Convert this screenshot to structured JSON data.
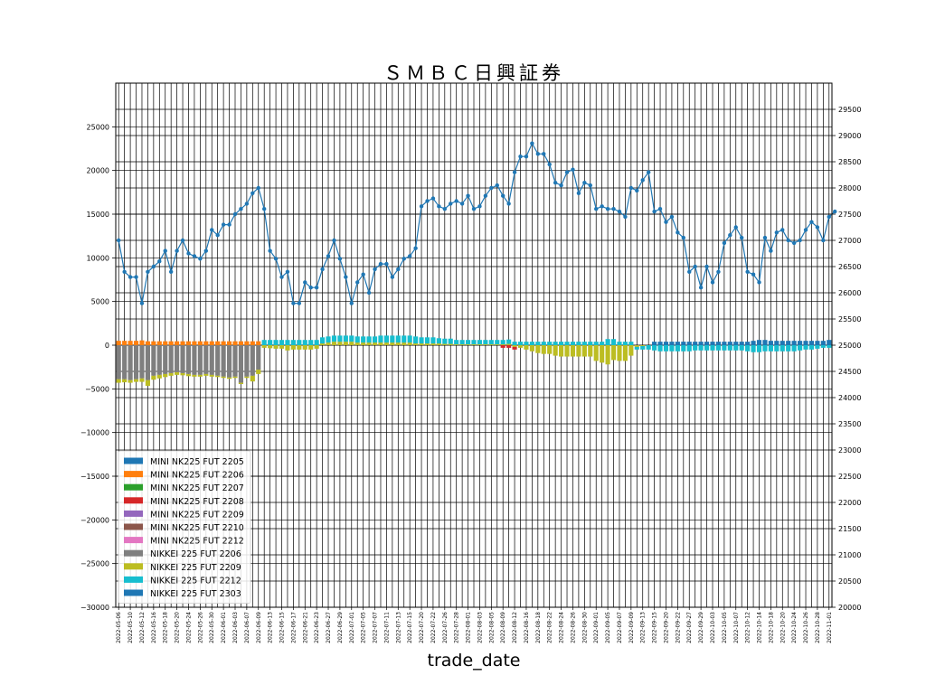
{
  "chart_data": {
    "type": "bar",
    "title": "ＳＭＢＣ日興証券",
    "xlabel": "trade_date",
    "ylabel": "",
    "ylim": [
      -30000,
      30000
    ],
    "y2lim": [
      20000,
      30000
    ],
    "left_ticks": [
      -30000,
      -25000,
      -20000,
      -15000,
      -10000,
      -5000,
      0,
      5000,
      10000,
      15000,
      20000,
      25000
    ],
    "right_ticks": [
      20000,
      20500,
      21000,
      21500,
      22000,
      22500,
      23000,
      23500,
      24000,
      24500,
      25000,
      25500,
      26000,
      26500,
      27000,
      27500,
      28000,
      28500,
      29000,
      29500
    ],
    "grid": true,
    "legend_position": "lower-left",
    "legend": [
      {
        "label": "MINI NK225 FUT 2205",
        "color": "#1f77b4"
      },
      {
        "label": "MINI NK225 FUT 2206",
        "color": "#ff7f0e"
      },
      {
        "label": "MINI NK225 FUT 2207",
        "color": "#2ca02c"
      },
      {
        "label": "MINI NK225 FUT 2208",
        "color": "#d62728"
      },
      {
        "label": "MINI NK225 FUT 2209",
        "color": "#9467bd"
      },
      {
        "label": "MINI NK225 FUT 2210",
        "color": "#8c564b"
      },
      {
        "label": "MINI NK225 FUT 2212",
        "color": "#e377c2"
      },
      {
        "label": "NIKKEI 225 FUT 2206",
        "color": "#7f7f7f"
      },
      {
        "label": "NIKKEI 225 FUT 2209",
        "color": "#bcbd22"
      },
      {
        "label": "NIKKEI 225 FUT 2212",
        "color": "#17becf"
      },
      {
        "label": "NIKKEI 225 FUT 2303",
        "color": "#1f77b4"
      }
    ],
    "dates": [
      "2022-05-06",
      "2022-05-09",
      "2022-05-10",
      "2022-05-11",
      "2022-05-12",
      "2022-05-13",
      "2022-05-16",
      "2022-05-17",
      "2022-05-18",
      "2022-05-19",
      "2022-05-20",
      "2022-05-23",
      "2022-05-24",
      "2022-05-25",
      "2022-05-26",
      "2022-05-27",
      "2022-05-30",
      "2022-05-31",
      "2022-06-01",
      "2022-06-02",
      "2022-06-03",
      "2022-06-06",
      "2022-06-07",
      "2022-06-08",
      "2022-06-09",
      "2022-06-10",
      "2022-06-13",
      "2022-06-14",
      "2022-06-15",
      "2022-06-16",
      "2022-06-17",
      "2022-06-20",
      "2022-06-21",
      "2022-06-22",
      "2022-06-23",
      "2022-06-24",
      "2022-06-27",
      "2022-06-28",
      "2022-06-29",
      "2022-06-30",
      "2022-07-01",
      "2022-07-04",
      "2022-07-05",
      "2022-07-06",
      "2022-07-07",
      "2022-07-08",
      "2022-07-11",
      "2022-07-12",
      "2022-07-13",
      "2022-07-14",
      "2022-07-15",
      "2022-07-19",
      "2022-07-20",
      "2022-07-21",
      "2022-07-22",
      "2022-07-25",
      "2022-07-26",
      "2022-07-27",
      "2022-07-28",
      "2022-07-29",
      "2022-08-01",
      "2022-08-02",
      "2022-08-03",
      "2022-08-04",
      "2022-08-05",
      "2022-08-08",
      "2022-08-09",
      "2022-08-10",
      "2022-08-12",
      "2022-08-15",
      "2022-08-16",
      "2022-08-17",
      "2022-08-18",
      "2022-08-19",
      "2022-08-22",
      "2022-08-23",
      "2022-08-24",
      "2022-08-25",
      "2022-08-26",
      "2022-08-29",
      "2022-08-30",
      "2022-08-31",
      "2022-09-01",
      "2022-09-02",
      "2022-09-05",
      "2022-09-06",
      "2022-09-07",
      "2022-09-08",
      "2022-09-09",
      "2022-09-12",
      "2022-09-13",
      "2022-09-14",
      "2022-09-15",
      "2022-09-16",
      "2022-09-20",
      "2022-09-21",
      "2022-09-22",
      "2022-09-26",
      "2022-09-27",
      "2022-09-28",
      "2022-09-29",
      "2022-09-30",
      "2022-10-03",
      "2022-10-04",
      "2022-10-05",
      "2022-10-06",
      "2022-10-07",
      "2022-10-11",
      "2022-10-12",
      "2022-10-13",
      "2022-10-14",
      "2022-10-17",
      "2022-10-18",
      "2022-10-19",
      "2022-10-20",
      "2022-10-21",
      "2022-10-24",
      "2022-10-25",
      "2022-10-26",
      "2022-10-27",
      "2022-10-28",
      "2022-10-31",
      "2022-11-01"
    ],
    "xtick_labels": [
      "2022-05-06",
      "2022-05-10",
      "2022-05-12",
      "2022-05-16",
      "2022-05-18",
      "2022-05-20",
      "2022-05-24",
      "2022-05-26",
      "2022-05-30",
      "2022-06-01",
      "2022-06-03",
      "2022-06-07",
      "2022-06-09",
      "2022-06-13",
      "2022-06-15",
      "2022-06-17",
      "2022-06-21",
      "2022-06-23",
      "2022-06-27",
      "2022-06-29",
      "2022-07-01",
      "2022-07-05",
      "2022-07-07",
      "2022-07-11",
      "2022-07-13",
      "2022-07-15",
      "2022-07-20",
      "2022-07-22",
      "2022-07-26",
      "2022-07-28",
      "2022-08-01",
      "2022-08-03",
      "2022-08-05",
      "2022-08-09",
      "2022-08-12",
      "2022-08-16",
      "2022-08-18",
      "2022-08-22",
      "2022-08-24",
      "2022-08-26",
      "2022-08-30",
      "2022-09-01",
      "2022-09-05",
      "2022-09-07",
      "2022-09-09",
      "2022-09-13",
      "2022-09-15",
      "2022-09-20",
      "2022-09-22",
      "2022-09-27",
      "2022-09-29",
      "2022-10-03",
      "2022-10-05",
      "2022-10-07",
      "2022-10-12",
      "2022-10-14",
      "2022-10-18",
      "2022-10-20",
      "2022-10-24",
      "2022-10-26",
      "2022-10-28",
      "2022-11-01"
    ],
    "line_series": {
      "name": "",
      "color": "#1f77b4",
      "values": [
        27000,
        26400,
        26300,
        26300,
        25800,
        26400,
        26500,
        26600,
        26800,
        26400,
        26800,
        27000,
        26750,
        26700,
        26650,
        26800,
        27200,
        27100,
        27300,
        27300,
        27500,
        27600,
        27700,
        27900,
        28000,
        27600,
        26800,
        26650,
        26300,
        26400,
        25800,
        25800,
        26200,
        26100,
        26100,
        26450,
        26700,
        27000,
        26650,
        26300,
        25800,
        26200,
        26350,
        26000,
        26450,
        26550,
        26550,
        26300,
        26450,
        26650,
        26700,
        26850,
        27650,
        27750,
        27800,
        27650,
        27600,
        27700,
        27750,
        27700,
        27850,
        27600,
        27650,
        27850,
        28000,
        28050,
        27850,
        27700,
        28300,
        28600,
        28600,
        28850,
        28650,
        28650,
        28450,
        28100,
        28050,
        28300,
        28350,
        27900,
        28100,
        28050,
        27600,
        27650,
        27600,
        27600,
        27550,
        27450,
        28000,
        27950,
        28150,
        28300,
        27550,
        27600,
        27350,
        27450,
        27150,
        27050,
        26400,
        26500,
        26100,
        26500,
        26200,
        26400,
        26950,
        27100,
        27250,
        27050,
        26400,
        26350,
        26200,
        27050,
        26800,
        27150,
        27200,
        27000,
        26950,
        27000,
        27200,
        27350,
        27250,
        27000,
        27450,
        27550
      ]
    },
    "bar_series": [
      {
        "name": "MINI NK225 FUT 2206",
        "color": "#ff7f0e",
        "values": [
          500,
          500,
          500,
          500,
          550,
          450,
          450,
          450,
          450,
          450,
          450,
          450,
          450,
          450,
          450,
          450,
          450,
          450,
          450,
          450,
          450,
          450,
          450,
          450,
          450,
          0,
          0,
          0,
          0,
          0,
          0,
          0,
          0,
          0,
          0,
          0,
          0,
          0,
          0,
          0,
          0,
          0,
          0,
          0,
          0,
          0,
          0,
          0,
          0,
          0,
          0,
          0,
          0,
          0,
          0,
          0,
          0,
          0,
          0,
          0,
          0,
          0,
          0,
          0,
          0,
          0,
          0,
          0,
          0,
          0,
          0,
          0,
          0,
          0,
          0,
          0,
          0,
          0,
          0,
          0,
          0,
          0,
          0,
          0,
          0,
          0,
          0,
          0,
          0,
          0,
          0,
          0,
          0,
          0,
          0,
          0,
          0,
          0,
          0,
          0,
          0,
          0,
          0,
          0,
          0,
          0,
          0,
          0,
          0,
          0,
          0,
          0,
          0,
          0,
          0,
          0,
          0,
          0,
          0,
          0,
          0,
          0,
          0
        ]
      },
      {
        "name": "NIKKEI 225 FUT 2206",
        "color": "#7f7f7f",
        "values": [
          -3900,
          -3900,
          -4000,
          -3900,
          -3800,
          -4000,
          -3500,
          -3400,
          -3300,
          -3200,
          -3100,
          -3200,
          -3300,
          -3400,
          -3400,
          -3300,
          -3400,
          -3500,
          -3600,
          -3700,
          -3600,
          -4300,
          -3600,
          -3500,
          -2800,
          0,
          0,
          0,
          0,
          0,
          0,
          0,
          0,
          0,
          0,
          0,
          0,
          0,
          0,
          0,
          0,
          0,
          0,
          0,
          0,
          0,
          0,
          0,
          0,
          0,
          0,
          0,
          0,
          0,
          0,
          0,
          0,
          0,
          0,
          0,
          0,
          0,
          0,
          0,
          0,
          0,
          0,
          0,
          0,
          0,
          0,
          0,
          0,
          0,
          0,
          0,
          0,
          0,
          0,
          0,
          0,
          0,
          0,
          0,
          0,
          0,
          0,
          0,
          0,
          0,
          0,
          0,
          0,
          0,
          0,
          0,
          0,
          0,
          0,
          0,
          0,
          0,
          0,
          0,
          0,
          0,
          0,
          0,
          0,
          0,
          0,
          0,
          0,
          0,
          0,
          0,
          0,
          0,
          0,
          0,
          0,
          0,
          0
        ]
      },
      {
        "name": "NIKKEI 225 FUT 2209",
        "color": "#bcbd22",
        "values": [
          -400,
          -350,
          -300,
          -300,
          -400,
          -650,
          -450,
          -400,
          -350,
          -300,
          -300,
          -250,
          -250,
          -200,
          -200,
          -200,
          -200,
          -150,
          -150,
          -150,
          -150,
          -150,
          -150,
          -650,
          -500,
          -300,
          -350,
          -400,
          -400,
          -600,
          -500,
          -500,
          -500,
          -500,
          -400,
          200,
          300,
          400,
          400,
          400,
          400,
          300,
          300,
          300,
          300,
          300,
          300,
          300,
          300,
          300,
          300,
          200,
          200,
          200,
          200,
          200,
          150,
          150,
          100,
          100,
          100,
          100,
          100,
          100,
          100,
          100,
          100,
          150,
          -200,
          -300,
          -500,
          -700,
          -900,
          -1000,
          -1000,
          -1200,
          -1300,
          -1300,
          -1300,
          -1300,
          -1300,
          -1300,
          -1800,
          -2000,
          -2200,
          -1700,
          -1800,
          -1800,
          -1200,
          -200,
          -100,
          0,
          0,
          0,
          0,
          0,
          0,
          0,
          0,
          0,
          0,
          0,
          0,
          0,
          0,
          0,
          0,
          0,
          0,
          0,
          0,
          0,
          0,
          0,
          0,
          0,
          0,
          0,
          0,
          0,
          0,
          0,
          0
        ]
      },
      {
        "name": "NIKKEI 225 FUT 2212",
        "color": "#17becf",
        "values": [
          0,
          0,
          0,
          0,
          0,
          0,
          0,
          0,
          0,
          0,
          0,
          0,
          0,
          0,
          0,
          0,
          0,
          0,
          0,
          0,
          0,
          0,
          0,
          0,
          0,
          600,
          600,
          600,
          600,
          600,
          600,
          600,
          600,
          600,
          600,
          700,
          700,
          700,
          700,
          700,
          700,
          700,
          700,
          700,
          700,
          800,
          800,
          800,
          800,
          800,
          800,
          800,
          700,
          700,
          700,
          600,
          600,
          600,
          500,
          500,
          500,
          500,
          500,
          500,
          500,
          500,
          500,
          500,
          400,
          400,
          400,
          400,
          400,
          400,
          400,
          400,
          400,
          400,
          400,
          400,
          400,
          400,
          400,
          400,
          700,
          700,
          400,
          400,
          400,
          -300,
          -400,
          -500,
          -600,
          -700,
          -700,
          -700,
          -700,
          -700,
          -700,
          -600,
          -600,
          -600,
          -600,
          -600,
          -600,
          -600,
          -600,
          -600,
          -700,
          -800,
          -800,
          -700,
          -700,
          -700,
          -700,
          -700,
          -700,
          -600,
          -500,
          -500,
          -400,
          -300,
          -300
        ]
      },
      {
        "name": "MINI NK225 FUT 2208",
        "color": "#d62728",
        "values": [
          0,
          0,
          0,
          0,
          0,
          0,
          0,
          0,
          0,
          0,
          0,
          0,
          0,
          0,
          0,
          0,
          0,
          0,
          0,
          0,
          0,
          0,
          0,
          0,
          0,
          0,
          0,
          0,
          0,
          0,
          0,
          0,
          0,
          0,
          0,
          0,
          0,
          0,
          0,
          0,
          0,
          0,
          0,
          0,
          0,
          0,
          0,
          0,
          0,
          0,
          0,
          0,
          0,
          0,
          0,
          0,
          0,
          0,
          0,
          0,
          0,
          0,
          0,
          0,
          0,
          0,
          -300,
          -300,
          -300,
          0,
          0,
          0,
          0,
          0,
          0,
          0,
          0,
          0,
          0,
          0,
          0,
          0,
          0,
          0,
          0,
          0,
          0,
          0,
          0,
          0,
          0,
          0,
          0,
          0,
          0,
          0,
          0,
          0,
          0,
          0,
          0,
          0,
          0,
          0,
          0,
          0,
          0,
          0,
          0,
          0,
          0,
          0,
          0,
          0,
          0,
          0,
          0,
          0,
          0,
          0,
          0,
          0,
          0
        ]
      },
      {
        "name": "NIKKEI 225 FUT 2303",
        "color": "#1f77b4",
        "values": [
          0,
          0,
          0,
          0,
          0,
          0,
          0,
          0,
          0,
          0,
          0,
          0,
          0,
          0,
          0,
          0,
          0,
          0,
          0,
          0,
          0,
          0,
          0,
          0,
          0,
          0,
          0,
          0,
          0,
          0,
          0,
          0,
          0,
          0,
          0,
          0,
          0,
          0,
          0,
          0,
          0,
          0,
          0,
          0,
          0,
          0,
          0,
          0,
          0,
          0,
          0,
          0,
          0,
          0,
          0,
          0,
          0,
          0,
          0,
          0,
          0,
          0,
          0,
          0,
          0,
          0,
          0,
          0,
          0,
          0,
          0,
          0,
          0,
          0,
          0,
          0,
          0,
          0,
          0,
          0,
          0,
          0,
          0,
          0,
          0,
          0,
          0,
          0,
          0,
          0,
          0,
          0,
          400,
          400,
          400,
          400,
          400,
          400,
          400,
          400,
          400,
          400,
          400,
          400,
          400,
          400,
          400,
          400,
          400,
          500,
          600,
          600,
          500,
          500,
          500,
          500,
          500,
          500,
          500,
          500,
          500,
          500,
          600
        ]
      }
    ]
  }
}
